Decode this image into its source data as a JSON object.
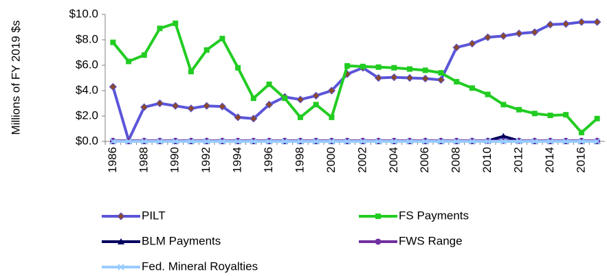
{
  "chart_data": {
    "type": "line",
    "y_label": "Millions of FY 2019 $s",
    "categories": [
      "1986",
      null,
      "1988",
      null,
      "1990",
      null,
      "1992",
      null,
      "1994",
      null,
      "1996",
      null,
      "1998",
      null,
      "2000",
      null,
      "2002",
      null,
      "2004",
      null,
      "2006",
      null,
      "2008",
      null,
      "2010",
      null,
      "2012",
      null,
      "2014",
      null,
      "2016",
      null
    ],
    "ylim": [
      0,
      10
    ],
    "yticks": [
      {
        "value": 0,
        "label": "$0.0"
      },
      {
        "value": 2,
        "label": "$2.0"
      },
      {
        "value": 4,
        "label": "$4.0"
      },
      {
        "value": 6,
        "label": "$6.0"
      },
      {
        "value": 8,
        "label": "$8.0"
      },
      {
        "value": 10,
        "label": "$10.0"
      }
    ],
    "series": [
      {
        "name": "PILT",
        "color": "#5b55d9",
        "marker": "diamond",
        "marker_color": "#8b4a2b",
        "values": [
          4.3,
          0.1,
          2.7,
          3.0,
          2.8,
          2.6,
          2.8,
          2.75,
          1.9,
          1.8,
          2.9,
          3.5,
          3.3,
          3.6,
          4.0,
          5.3,
          5.8,
          5.0,
          5.05,
          5.0,
          4.95,
          4.85,
          7.4,
          7.7,
          8.2,
          8.3,
          8.5,
          8.6,
          9.2,
          9.25,
          9.4,
          9.4
        ]
      },
      {
        "name": "FS Payments",
        "color": "#22cc22",
        "marker": "square",
        "marker_color": "#22cc22",
        "values": [
          7.8,
          6.3,
          6.8,
          8.9,
          9.3,
          5.5,
          7.2,
          8.1,
          5.8,
          3.4,
          4.5,
          3.4,
          1.9,
          2.9,
          1.9,
          5.95,
          5.9,
          5.85,
          5.8,
          5.7,
          5.6,
          5.4,
          4.7,
          4.2,
          3.7,
          2.9,
          2.5,
          2.2,
          2.05,
          2.1,
          0.7,
          1.8
        ]
      },
      {
        "name": "BLM Payments",
        "color": "#00005e",
        "marker": "triangle",
        "marker_color": "#00005e",
        "values": [
          0,
          0,
          0,
          0,
          0,
          0,
          0,
          0,
          0,
          0,
          0,
          0,
          0,
          0,
          0,
          0,
          0,
          0,
          0,
          0,
          0,
          0,
          0,
          0,
          0.05,
          0.4,
          0.05,
          0,
          0,
          0,
          0,
          0
        ]
      },
      {
        "name": "FWS Range",
        "color": "#7030a0",
        "marker": "circle",
        "marker_color": "#7030a0",
        "values": [
          0.05,
          0.05,
          0.05,
          0.05,
          0.05,
          0.05,
          0.05,
          0.05,
          0.05,
          0.05,
          0.05,
          0.05,
          0.05,
          0.05,
          0.05,
          0.05,
          0.05,
          0.05,
          0.05,
          0.05,
          0.05,
          0.05,
          0.05,
          0.05,
          0.05,
          0.05,
          0.05,
          0.05,
          0.05,
          0.05,
          0.05,
          0.05
        ]
      },
      {
        "name": "Fed. Mineral Royalties",
        "color": "#99ccff",
        "marker": "x",
        "marker_color": "#99ccff",
        "values": [
          0,
          0,
          0,
          0,
          0,
          0,
          0,
          0,
          0,
          0,
          0,
          0,
          0,
          0,
          0,
          0,
          0,
          0,
          0,
          0,
          0,
          0,
          0,
          0,
          0,
          0,
          0,
          0,
          0,
          0,
          0,
          0
        ]
      }
    ]
  }
}
